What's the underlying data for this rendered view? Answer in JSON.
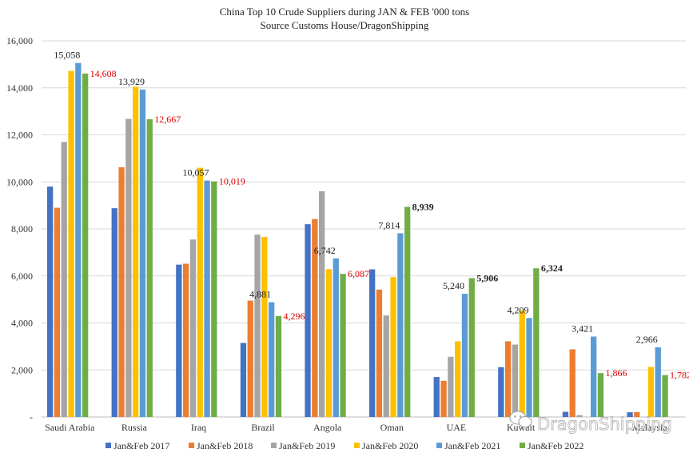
{
  "chart_data": {
    "type": "bar",
    "title": "China Top 10 Crude Suppliers during JAN & FEB '000 tons",
    "subtitle": "Source Customs House/DragonShipping",
    "categories": [
      "Saudi Arabia",
      "Russia",
      "Iraq",
      "Brazil",
      "Angola",
      "Oman",
      "UAE",
      "Kuwait",
      "",
      "Malaysia"
    ],
    "ylim": [
      0,
      16000
    ],
    "yticks": [
      "-",
      "2,000",
      "4,000",
      "6,000",
      "8,000",
      "10,000",
      "12,000",
      "14,000",
      "16,000"
    ],
    "gridlines": true,
    "legend_position": "bottom",
    "series": [
      {
        "name": "Jan&Feb 2017",
        "color": "#4472C4",
        "values": [
          9800,
          8880,
          6480,
          3150,
          8200,
          6280,
          1700,
          2120,
          220,
          200
        ]
      },
      {
        "name": "Jan&Feb 2018",
        "color": "#ED7D31",
        "values": [
          8900,
          10620,
          6520,
          4950,
          8420,
          5420,
          1540,
          3220,
          2880,
          210
        ]
      },
      {
        "name": "Jan&Feb 2019",
        "color": "#A5A5A5",
        "values": [
          11700,
          12680,
          7550,
          7760,
          9600,
          4320,
          2560,
          3080,
          80,
          0
        ]
      },
      {
        "name": "Jan&Feb 2020",
        "color": "#FFC000",
        "values": [
          14720,
          14050,
          10600,
          7660,
          6290,
          5950,
          3220,
          4520,
          0,
          2130
        ]
      },
      {
        "name": "Jan&Feb 2021",
        "color": "#5B9BD5",
        "values": [
          15058,
          13929,
          10057,
          4881,
          6742,
          7814,
          5240,
          4209,
          3421,
          2966
        ]
      },
      {
        "name": "Jan&Feb 2022",
        "color": "#70AD47",
        "values": [
          14608,
          12667,
          10019,
          4296,
          6087,
          8939,
          5906,
          6324,
          1866,
          1782
        ]
      }
    ],
    "data_labels": [
      {
        "series": "Jan&Feb 2021",
        "category": "Saudi Arabia",
        "text": "15,058",
        "color": "#222222"
      },
      {
        "series": "Jan&Feb 2022",
        "category": "Saudi Arabia",
        "text": "14,608",
        "color": "#E00000"
      },
      {
        "series": "Jan&Feb 2021",
        "category": "Russia",
        "text": "13,929",
        "color": "#222222"
      },
      {
        "series": "Jan&Feb 2022",
        "category": "Russia",
        "text": "12,667",
        "color": "#E00000"
      },
      {
        "series": "Jan&Feb 2021",
        "category": "Iraq",
        "text": "10,057",
        "color": "#222222"
      },
      {
        "series": "Jan&Feb 2022",
        "category": "Iraq",
        "text": "10,019",
        "color": "#E00000"
      },
      {
        "series": "Jan&Feb 2021",
        "category": "Brazil",
        "text": "4,881",
        "color": "#222222"
      },
      {
        "series": "Jan&Feb 2022",
        "category": "Brazil",
        "text": "4,296",
        "color": "#E00000"
      },
      {
        "series": "Jan&Feb 2021",
        "category": "Angola",
        "text": "6,742",
        "color": "#222222"
      },
      {
        "series": "Jan&Feb 2022",
        "category": "Angola",
        "text": "6,087",
        "color": "#E00000"
      },
      {
        "series": "Jan&Feb 2021",
        "category": "Oman",
        "text": "7,814",
        "color": "#222222"
      },
      {
        "series": "Jan&Feb 2022",
        "category": "Oman",
        "text": "8,939",
        "color": "#222222",
        "bold": true
      },
      {
        "series": "Jan&Feb 2021",
        "category": "UAE",
        "text": "5,240",
        "color": "#222222"
      },
      {
        "series": "Jan&Feb 2022",
        "category": "UAE",
        "text": "5,906",
        "color": "#222222",
        "bold": true
      },
      {
        "series": "Jan&Feb 2021",
        "category": "Kuwait",
        "text": "4,209",
        "color": "#222222"
      },
      {
        "series": "Jan&Feb 2022",
        "category": "Kuwait",
        "text": "6,324",
        "color": "#222222",
        "bold": true
      },
      {
        "series": "Jan&Feb 2021",
        "category": "",
        "text": "3,421",
        "color": "#222222"
      },
      {
        "series": "Jan&Feb 2022",
        "category": "",
        "text": "1,866",
        "color": "#E00000"
      },
      {
        "series": "Jan&Feb 2021",
        "category": "Malaysia",
        "text": "2,966",
        "color": "#222222"
      },
      {
        "series": "Jan&Feb 2022",
        "category": "Malaysia",
        "text": "1,782",
        "color": "#E00000"
      }
    ]
  },
  "watermark": {
    "text": "DragonShipping",
    "icon": "wechat-icon"
  }
}
